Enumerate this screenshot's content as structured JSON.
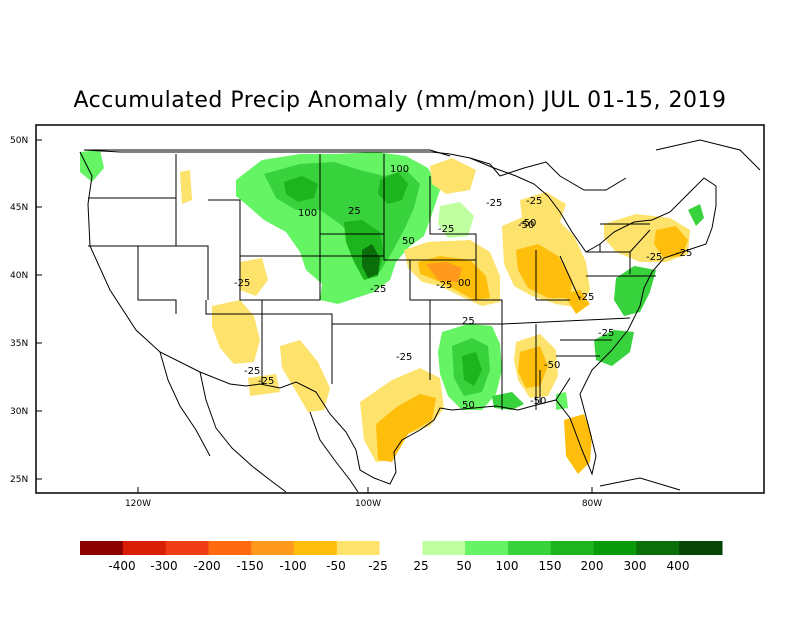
{
  "title": "Accumulated Precip Anomaly (mm/mon) JUL 01-15, 2019",
  "lat_labels": [
    "50N",
    "45N",
    "40N",
    "35N",
    "30N",
    "25N"
  ],
  "lon_labels": [
    "120W",
    "100W",
    "80W"
  ],
  "contour_labels": [
    "100",
    "100",
    "25",
    "-25",
    "-50",
    "-25",
    "-25",
    "50",
    "-25",
    "00",
    "-25",
    "-25",
    "25",
    "-25",
    "-25",
    "-25",
    "-25",
    "-50",
    "-25",
    "-25",
    "50",
    "-50",
    "-50",
    "-25"
  ],
  "legend": {
    "labels": [
      "-400",
      "-300",
      "-200",
      "-150",
      "-100",
      "-50",
      "-25",
      "25",
      "50",
      "100",
      "150",
      "200",
      "300",
      "400"
    ],
    "colors": [
      "#8b0000",
      "#d81e05",
      "#f03c14",
      "#ff6a10",
      "#ff9a1e",
      "#ffbe0b",
      "#fde26b",
      "#ffffff",
      "#c0ffa0",
      "#64f464",
      "#37d23c",
      "#1eb41e",
      "#0a9b0a",
      "#0a6e0a",
      "#064505"
    ]
  }
}
